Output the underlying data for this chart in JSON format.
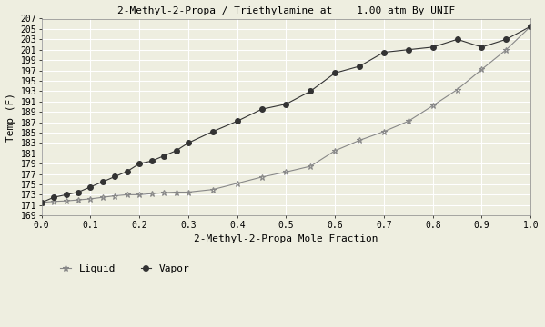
{
  "title": "2-Methyl-2-Propa / Triethylamine at    1.00 atm By UNIF",
  "xlabel": "2-Methyl-2-Propa Mole Fraction",
  "ylabel": "Temp (F)",
  "xlim": [
    0.0,
    1.0
  ],
  "ylim": [
    169,
    207
  ],
  "ytick_start": 169,
  "ytick_end": 207,
  "ytick_step": 2,
  "xticks": [
    0.0,
    0.1,
    0.2,
    0.3,
    0.4,
    0.5,
    0.6,
    0.7,
    0.8,
    0.9,
    1.0
  ],
  "liquid_x": [
    0.0,
    0.025,
    0.05,
    0.075,
    0.1,
    0.125,
    0.15,
    0.175,
    0.2,
    0.225,
    0.25,
    0.275,
    0.3,
    0.35,
    0.4,
    0.45,
    0.5,
    0.55,
    0.6,
    0.65,
    0.7,
    0.75,
    0.8,
    0.85,
    0.9,
    0.95,
    1.0
  ],
  "liquid_y": [
    171.5,
    171.7,
    171.8,
    172.0,
    172.2,
    172.5,
    172.8,
    173.0,
    173.0,
    173.2,
    173.4,
    173.5,
    173.5,
    174.0,
    175.2,
    176.4,
    177.4,
    178.5,
    181.5,
    183.5,
    185.2,
    187.2,
    190.2,
    193.3,
    197.2,
    201.0,
    205.5
  ],
  "vapor_x": [
    0.0,
    0.025,
    0.05,
    0.075,
    0.1,
    0.125,
    0.15,
    0.175,
    0.2,
    0.225,
    0.25,
    0.275,
    0.3,
    0.35,
    0.4,
    0.45,
    0.5,
    0.55,
    0.6,
    0.65,
    0.7,
    0.75,
    0.8,
    0.85,
    0.9,
    0.95,
    1.0
  ],
  "vapor_y": [
    171.5,
    172.5,
    173.0,
    173.5,
    174.5,
    175.5,
    176.5,
    177.5,
    179.0,
    179.5,
    180.5,
    181.5,
    183.0,
    185.2,
    187.2,
    189.5,
    190.5,
    193.0,
    196.5,
    197.8,
    200.5,
    201.0,
    201.5,
    203.0,
    201.5,
    203.0,
    205.5
  ],
  "liquid_color": "#888888",
  "vapor_color": "#333333",
  "liquid_marker": "*",
  "vapor_marker": "o",
  "liquid_label": "Liquid",
  "vapor_label": "Vapor",
  "bg_color": "#eeeee0",
  "grid_color": "#ffffff",
  "font_family": "monospace",
  "title_fontsize": 8,
  "label_fontsize": 8,
  "tick_fontsize": 7
}
